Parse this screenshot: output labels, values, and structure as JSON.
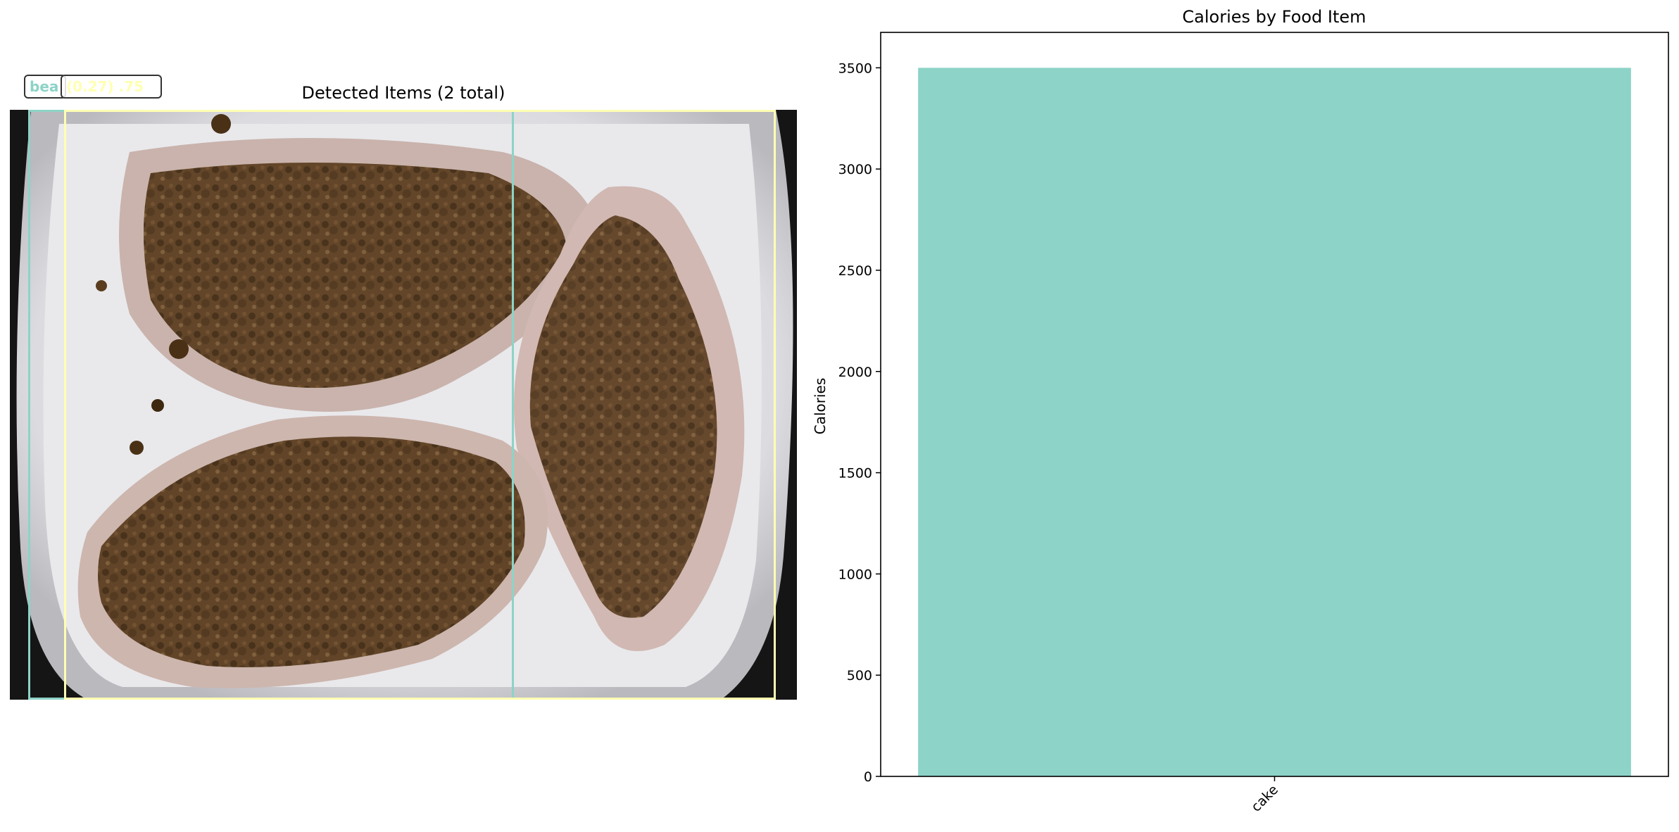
{
  "detection_panel": {
    "title": "Detected Items (2 total)",
    "detections": [
      {
        "label": "bea",
        "score_text": "",
        "color": "#8dd3c7"
      },
      {
        "label": "",
        "score_text": "(0.27) .75",
        "color": "#ffffb3"
      }
    ],
    "label_text_visible": [
      "bea",
      "(0.27)",
      ".75"
    ]
  },
  "chart_data": {
    "type": "bar",
    "title": "Calories by Food Item",
    "xlabel": "",
    "ylabel": "Calories",
    "categories": [
      "cake"
    ],
    "values": [
      3500
    ],
    "ylim": [
      0,
      3675
    ],
    "yticks": [
      0,
      500,
      1000,
      1500,
      2000,
      2500,
      3000,
      3500
    ],
    "bar_color": "#8dd3c7",
    "grid": false,
    "legend": "none",
    "xtick_rotation": 45
  }
}
